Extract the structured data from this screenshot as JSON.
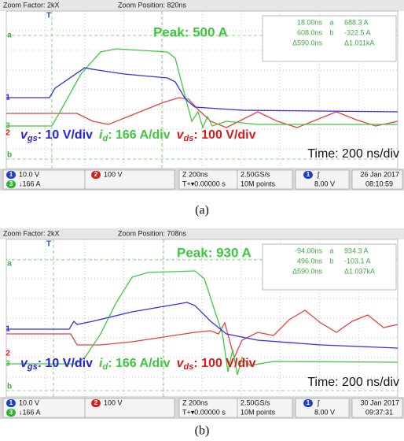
{
  "panels": [
    {
      "header": {
        "zoom_factor": "Zoom Factor: 2kX",
        "zoom_position": "Zoom Position: 820ns"
      },
      "markers": {
        "trigger": "T",
        "a": "a",
        "ch1": "1",
        "ch3": "3",
        "ch2": "2",
        "b": "b"
      },
      "peak": "Peak: 500 A",
      "cursors": {
        "a_time": "18.00ns",
        "a_label": "a",
        "a_value": "688.3 A",
        "b_time": "608.0ns",
        "b_label": "b",
        "b_value": "-322.5 A",
        "delta_time": "Δ590.0ns",
        "delta_value": "Δ1.011kA"
      },
      "legend": [
        {
          "symbol": "v",
          "sub": "gs",
          "scale": ": 10 V/div",
          "color": "#2424d8"
        },
        {
          "symbol": "i",
          "sub": "d",
          "scale": ": 166 A/div",
          "color": "#3cc83c"
        },
        {
          "symbol": "v",
          "sub": "ds",
          "scale": ": 100 V/div",
          "color": "#e01818"
        }
      ],
      "timebase": "Time: 200 ns/div",
      "status": {
        "ch1_num": "1",
        "ch1": "10.0 V",
        "ch2_num": "2",
        "ch2": "100 V",
        "ch3_num": "3",
        "ch3": "↓166 A",
        "zoom": "Z 200ns",
        "trigger_pos": "T+▾0.00000 s",
        "rate": "2.50GS/s",
        "points": "10M points",
        "trig_ch": "1",
        "trig_slope": "ʃ",
        "trig_level": "8.00 V",
        "date": "26 Jan 2017",
        "time": "08:10:59"
      },
      "caption": "(a)"
    },
    {
      "header": {
        "zoom_factor": "Zoom Factor: 2kX",
        "zoom_position": "Zoom Position: 708ns"
      },
      "markers": {
        "trigger": "T",
        "a": "a",
        "ch1": "1",
        "ch3": "3",
        "ch2": "2",
        "b": "b"
      },
      "peak": "Peak: 930 A",
      "cursors": {
        "a_time": "-94.00ns",
        "a_label": "a",
        "a_value": "934.3 A",
        "b_time": "496.0ns",
        "b_label": "b",
        "b_value": "-103.1 A",
        "delta_time": "Δ590.0ns",
        "delta_value": "Δ1.037kA"
      },
      "legend": [
        {
          "symbol": "v",
          "sub": "gs",
          "scale": ": 10 V/div",
          "color": "#2424d8"
        },
        {
          "symbol": "i",
          "sub": "d",
          "scale": ": 166 A/div",
          "color": "#3cc83c"
        },
        {
          "symbol": "v",
          "sub": "ds",
          "scale": ": 100 V/div",
          "color": "#e01818"
        }
      ],
      "timebase": "Time: 200 ns/div",
      "status": {
        "ch1_num": "1",
        "ch1": "10.0 V",
        "ch2_num": "2",
        "ch2": "100 V",
        "ch3_num": "3",
        "ch3": "↓166 A",
        "zoom": "Z 200ns",
        "trigger_pos": "T+▾0.00000 s",
        "rate": "2.50GS/s",
        "points": "10M points",
        "trig_ch": "1",
        "trig_slope": "ʃ",
        "trig_level": "8.00 V",
        "date": "30 Jan 2017",
        "time": "09:37:31"
      },
      "caption": "(b)"
    }
  ]
}
